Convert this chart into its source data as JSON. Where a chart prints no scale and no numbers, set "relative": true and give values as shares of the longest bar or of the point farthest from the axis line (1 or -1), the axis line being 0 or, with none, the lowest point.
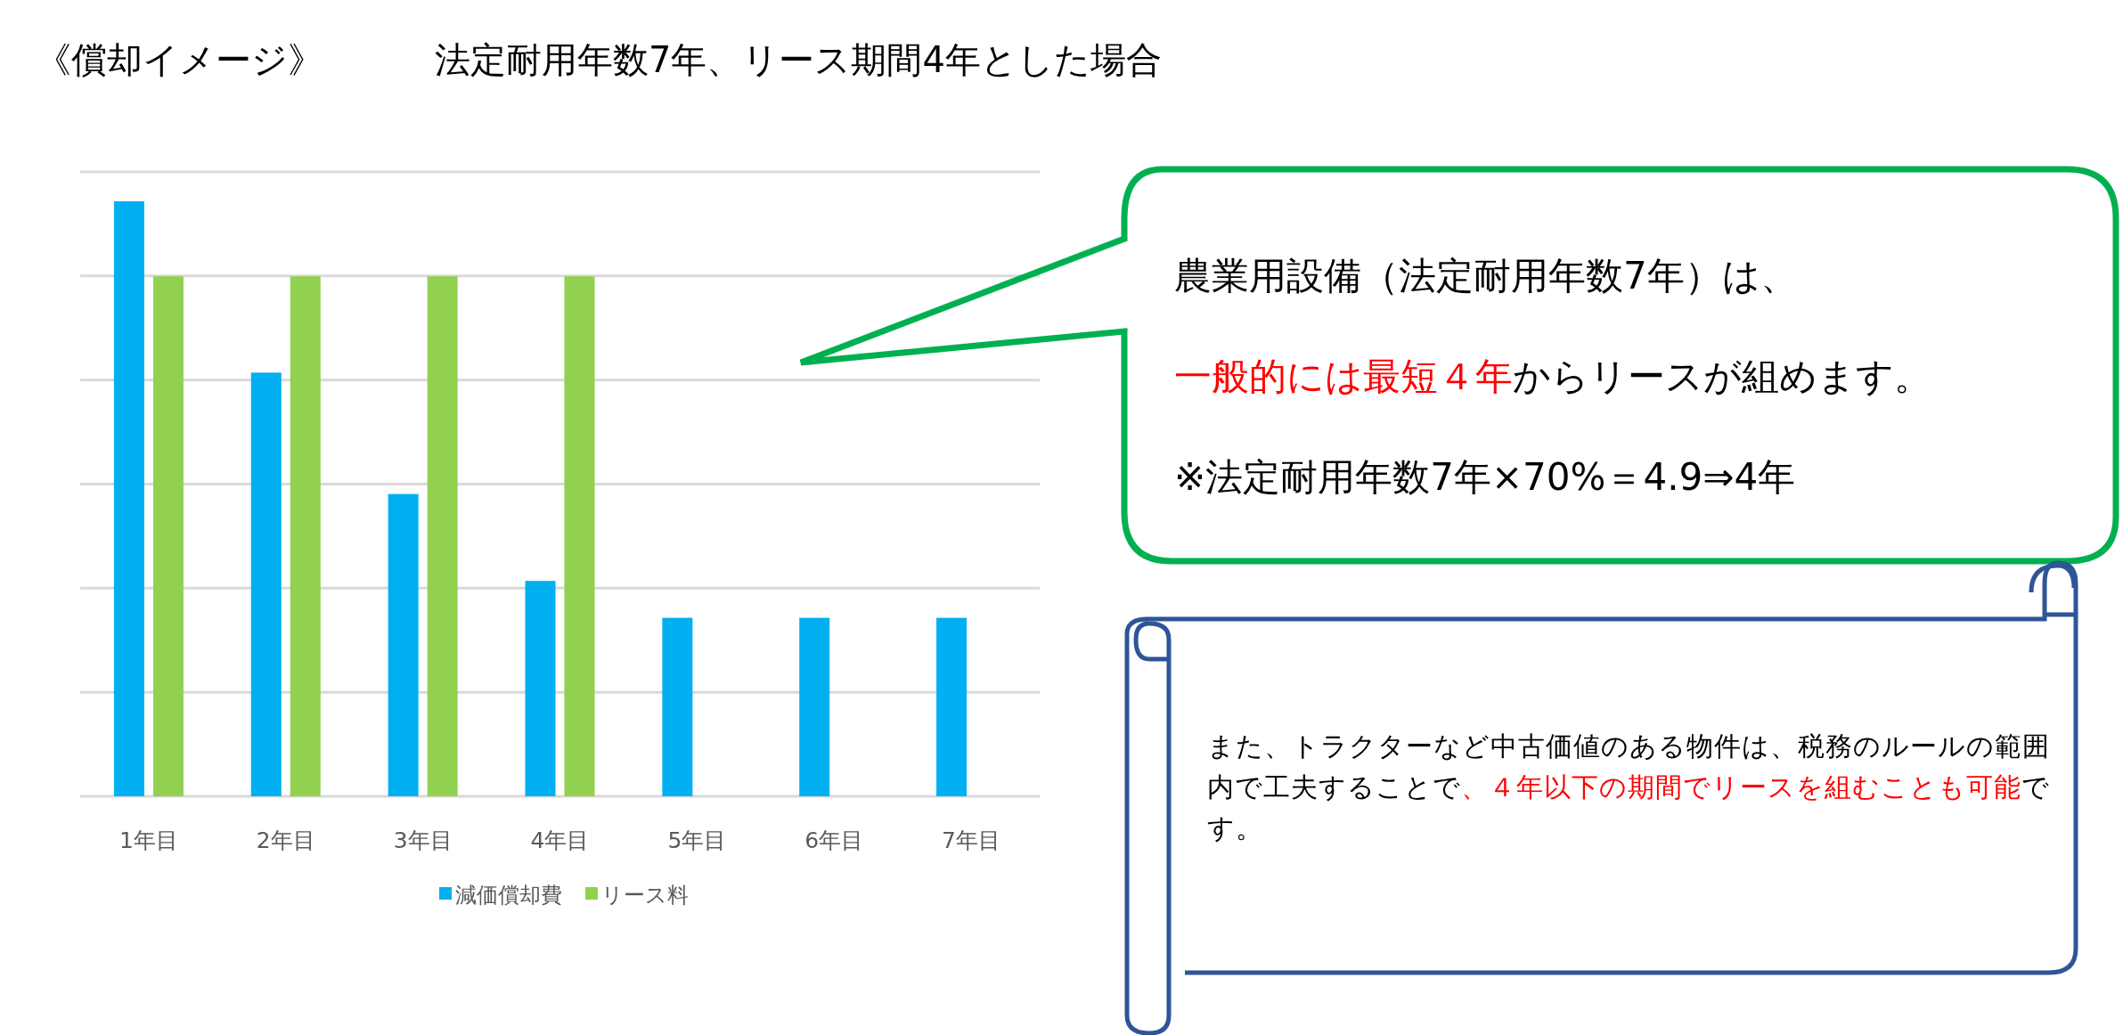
{
  "chart_data": {
    "type": "bar",
    "relative": true,
    "grid": "y",
    "legend": "bottom",
    "title": "《償却イメージ》",
    "subtitle": "法定耐用年数7年、リース期間4年とした場合",
    "categories": [
      "1年目",
      "2年目",
      "3年目",
      "4年目",
      "5年目",
      "6年目",
      "7年目"
    ],
    "series": [
      {
        "name": "減価償却費",
        "color": "#00b0f0",
        "values": [
          1,
          0.712,
          0.508,
          0.362,
          0.3,
          0.3,
          0.3
        ]
      },
      {
        "name": "リース料",
        "color": "#92d050",
        "values": [
          0.874,
          0.874,
          0.874,
          0.874,
          null,
          null,
          null
        ]
      }
    ],
    "annotations": [
      "農業用設備（法定耐用年数7年）は、",
      "一般的には最短４年",
      "からリースが組めます。",
      "※法定耐用年数7年×70%＝4.9⇒4年",
      "また、トラクターなど中古価値のある物件は、税務のルールの範囲内で工夫することで",
      "、４年以下の期間でリースを組むことも可能",
      "です。"
    ]
  }
}
